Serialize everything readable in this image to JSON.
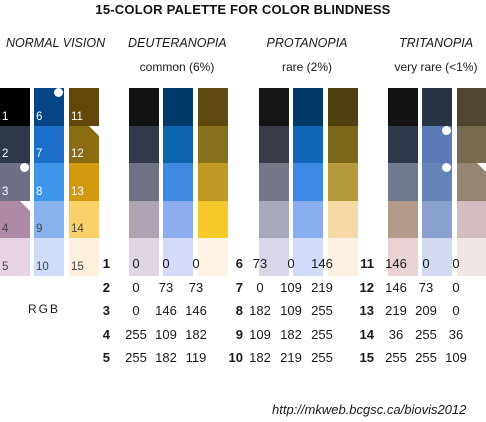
{
  "title": "15-COLOR PALETTE FOR COLOR BLINDNESS",
  "groups": [
    {
      "name": "NORMAL VISION",
      "subtitle": ""
    },
    {
      "name": "DEUTERANOPIA",
      "subtitle": "common (6%)"
    },
    {
      "name": "PROTANOPIA",
      "subtitle": "rare (2%)"
    },
    {
      "name": "TRITANOPIA",
      "subtitle": "very rare (<1%)"
    }
  ],
  "normal_columns": [
    [
      {
        "num": "1",
        "color": "#000000",
        "marker": ""
      },
      {
        "num": "2",
        "color": "#2f3848",
        "marker": ""
      },
      {
        "num": "3",
        "color": "#6f7085",
        "marker": "dot"
      },
      {
        "num": "4",
        "color": "#ae8aa4",
        "marker": "triangle"
      },
      {
        "num": "5",
        "color": "#e7d4e2",
        "marker": ""
      }
    ],
    [
      {
        "num": "6",
        "color": "#054585",
        "marker": "dot"
      },
      {
        "num": "7",
        "color": "#1b6fc8",
        "marker": ""
      },
      {
        "num": "8",
        "color": "#3f95e8",
        "marker": ""
      },
      {
        "num": "9",
        "color": "#86b2ee",
        "marker": ""
      },
      {
        "num": "10",
        "color": "#d0dcf8",
        "marker": ""
      }
    ],
    [
      {
        "num": "11",
        "color": "#62460a",
        "marker": ""
      },
      {
        "num": "12",
        "color": "#8b6b10",
        "marker": "triangle"
      },
      {
        "num": "13",
        "color": "#d39a10",
        "marker": ""
      },
      {
        "num": "14",
        "color": "#fad06a",
        "marker": ""
      },
      {
        "num": "15",
        "color": "#fdf1dd",
        "marker": ""
      }
    ]
  ],
  "deuteranopia_columns": [
    [
      {
        "color": "#111111",
        "marker": ""
      },
      {
        "color": "#323a4a",
        "marker": ""
      },
      {
        "color": "#6f7285",
        "marker": ""
      },
      {
        "color": "#aea3b3",
        "marker": ""
      },
      {
        "color": "#e0d6e3",
        "marker": ""
      }
    ],
    [
      {
        "color": "#003a69",
        "marker": ""
      },
      {
        "color": "#0d65b0",
        "marker": ""
      },
      {
        "color": "#4189e0",
        "marker": ""
      },
      {
        "color": "#8cacf0",
        "marker": ""
      },
      {
        "color": "#d4daf8",
        "marker": ""
      }
    ],
    [
      {
        "color": "#5e4a10",
        "marker": ""
      },
      {
        "color": "#87701c",
        "marker": ""
      },
      {
        "color": "#c09a22",
        "marker": ""
      },
      {
        "color": "#f6c92a",
        "marker": ""
      },
      {
        "color": "#fdf2e3",
        "marker": ""
      }
    ]
  ],
  "protanopia_columns": [
    [
      {
        "color": "#151515",
        "marker": ""
      },
      {
        "color": "#373a47",
        "marker": ""
      },
      {
        "color": "#747886",
        "marker": ""
      },
      {
        "color": "#a7a8ba",
        "marker": ""
      },
      {
        "color": "#dad7e8",
        "marker": ""
      }
    ],
    [
      {
        "color": "#003966",
        "marker": ""
      },
      {
        "color": "#1166b7",
        "marker": ""
      },
      {
        "color": "#3c8ae3",
        "marker": ""
      },
      {
        "color": "#89aef0",
        "marker": ""
      },
      {
        "color": "#d2dbf7",
        "marker": ""
      }
    ],
    [
      {
        "color": "#4f4010",
        "marker": ""
      },
      {
        "color": "#7a6718",
        "marker": ""
      },
      {
        "color": "#b49a3c",
        "marker": ""
      },
      {
        "color": "#f5d9a4",
        "marker": ""
      },
      {
        "color": "#fcf0e0",
        "marker": ""
      }
    ]
  ],
  "tritanopia_columns": [
    [
      {
        "color": "#121212",
        "marker": ""
      },
      {
        "color": "#2f3849",
        "marker": ""
      },
      {
        "color": "#6f7a8d",
        "marker": ""
      },
      {
        "color": "#b39b8c",
        "marker": ""
      },
      {
        "color": "#e8d2d3",
        "marker": ""
      }
    ],
    [
      {
        "color": "#2a3344",
        "marker": ""
      },
      {
        "color": "#5b7bb6",
        "marker": "dot"
      },
      {
        "color": "#6585ba",
        "marker": "dot"
      },
      {
        "color": "#8aa1d0",
        "marker": ""
      },
      {
        "color": "#d3d9f2",
        "marker": ""
      }
    ],
    [
      {
        "color": "#4f4630",
        "marker": ""
      },
      {
        "color": "#776b4f",
        "marker": ""
      },
      {
        "color": "#978574",
        "marker": "triangle"
      },
      {
        "color": "#d4bdc0",
        "marker": ""
      },
      {
        "color": "#f0e6e6",
        "marker": ""
      }
    ]
  ],
  "rgb_label": "RGB",
  "rgb_table": [
    {
      "num": "1",
      "r": "0",
      "g": "0",
      "b": "0"
    },
    {
      "num": "2",
      "r": "0",
      "g": "73",
      "b": "73"
    },
    {
      "num": "3",
      "r": "0",
      "g": "146",
      "b": "146"
    },
    {
      "num": "4",
      "r": "255",
      "g": "109",
      "b": "182"
    },
    {
      "num": "5",
      "r": "255",
      "g": "182",
      "b": "119"
    },
    {
      "num": "6",
      "r": "73",
      "g": "0",
      "b": "146"
    },
    {
      "num": "7",
      "r": "0",
      "g": "109",
      "b": "219"
    },
    {
      "num": "8",
      "r": "182",
      "g": "109",
      "b": "255"
    },
    {
      "num": "9",
      "r": "109",
      "g": "182",
      "b": "255"
    },
    {
      "num": "10",
      "r": "182",
      "g": "219",
      "b": "255"
    },
    {
      "num": "11",
      "r": "146",
      "g": "0",
      "b": "0"
    },
    {
      "num": "12",
      "r": "146",
      "g": "73",
      "b": "0"
    },
    {
      "num": "13",
      "r": "219",
      "g": "209",
      "b": "0"
    },
    {
      "num": "14",
      "r": "36",
      "g": "255",
      "b": "36"
    },
    {
      "num": "15",
      "r": "255",
      "g": "255",
      "b": "109"
    }
  ],
  "url": "http://mkweb.bcgsc.ca/biovis2012"
}
